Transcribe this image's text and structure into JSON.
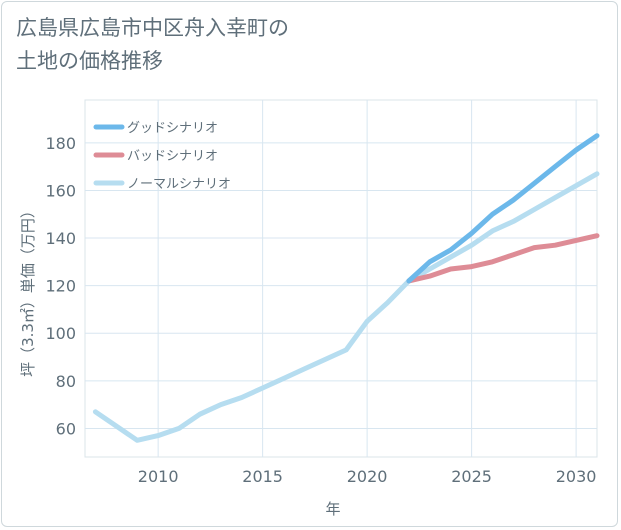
{
  "chart_data": {
    "type": "line",
    "title": "広島県広島市中区舟入幸町の土地の価格推移",
    "title_lines": [
      "広島県広島市中区舟入幸町の",
      "土地の価格推移"
    ],
    "xlabel": "年",
    "ylabel": "坪（3.3㎡）単価（万円）",
    "xlim": [
      2006.5,
      2031
    ],
    "ylim": [
      48,
      198
    ],
    "x_ticks": [
      2010,
      2015,
      2020,
      2025,
      2030
    ],
    "y_ticks": [
      60,
      80,
      100,
      120,
      140,
      160,
      180
    ],
    "grid": true,
    "legend_position": "top-left",
    "series": [
      {
        "name": "グッドシナリオ",
        "color": "#6cb8ea",
        "x": [
          2022,
          2023,
          2024,
          2025,
          2026,
          2027,
          2028,
          2029,
          2030,
          2031
        ],
        "values": [
          122,
          130,
          135,
          142,
          150,
          156,
          163,
          170,
          177,
          183
        ]
      },
      {
        "name": "バッドシナリオ",
        "color": "#de8c96",
        "x": [
          2022,
          2023,
          2024,
          2025,
          2026,
          2027,
          2028,
          2029,
          2030,
          2031
        ],
        "values": [
          122,
          124,
          127,
          128,
          130,
          133,
          136,
          137,
          139,
          141
        ]
      },
      {
        "name": "ノーマルシナリオ",
        "color": "#b6ddf0",
        "x": [
          2007,
          2008,
          2009,
          2010,
          2011,
          2012,
          2013,
          2014,
          2015,
          2016,
          2017,
          2018,
          2019,
          2020,
          2021,
          2022,
          2023,
          2024,
          2025,
          2026,
          2027,
          2028,
          2029,
          2030,
          2031
        ],
        "values": [
          67,
          61,
          55,
          57,
          60,
          66,
          70,
          73,
          77,
          81,
          85,
          89,
          93,
          105,
          113,
          122,
          127,
          132,
          137,
          143,
          147,
          152,
          157,
          162,
          167
        ]
      }
    ]
  }
}
